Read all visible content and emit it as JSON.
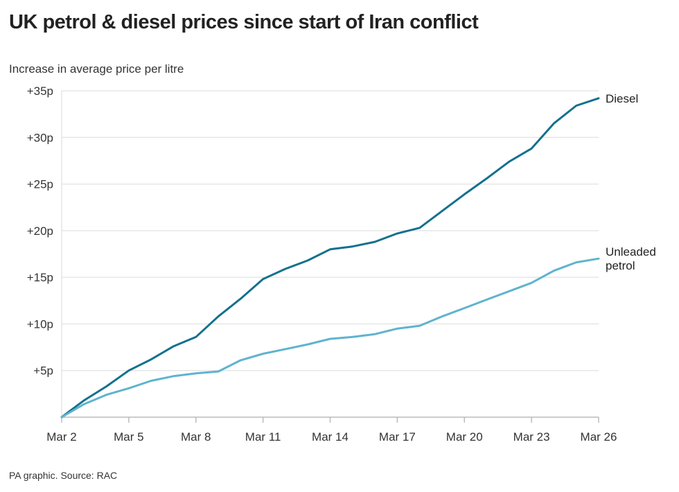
{
  "chart_data": {
    "type": "line",
    "title": "UK petrol & diesel prices since start of Iran conflict",
    "ylabel": "Increase in average price per litre",
    "source": "PA graphic. Source: RAC",
    "x_days": [
      "Mar 2",
      "Mar 3",
      "Mar 4",
      "Mar 5",
      "Mar 6",
      "Mar 7",
      "Mar 8",
      "Mar 9",
      "Mar 10",
      "Mar 11",
      "Mar 12",
      "Mar 13",
      "Mar 14",
      "Mar 15",
      "Mar 16",
      "Mar 17",
      "Mar 18",
      "Mar 19",
      "Mar 20",
      "Mar 21",
      "Mar 22",
      "Mar 23",
      "Mar 24",
      "Mar 25",
      "Mar 26"
    ],
    "x_tick_labels": [
      "Mar 2",
      "Mar 5",
      "Mar 8",
      "Mar 11",
      "Mar 14",
      "Mar 17",
      "Mar 20",
      "Mar 23",
      "Mar 26"
    ],
    "y_ticks": [
      5,
      10,
      15,
      20,
      25,
      30,
      35
    ],
    "y_tick_labels": [
      "+5p",
      "+10p",
      "+15p",
      "+20p",
      "+25p",
      "+30p",
      "+35p"
    ],
    "ylim": [
      0,
      35
    ],
    "grid": true,
    "series": [
      {
        "name": "Diesel",
        "label_lines": [
          "Diesel"
        ],
        "color": "#14708f",
        "values": [
          0,
          1.8,
          3.3,
          5.0,
          6.2,
          7.6,
          8.6,
          10.8,
          12.7,
          14.8,
          15.9,
          16.8,
          18.0,
          18.3,
          18.8,
          19.7,
          20.3,
          22.1,
          23.9,
          25.6,
          27.4,
          28.8,
          31.5,
          33.4,
          34.2
        ]
      },
      {
        "name": "Unleaded petrol",
        "label_lines": [
          "Unleaded",
          "petrol"
        ],
        "color": "#5fb3cf",
        "values": [
          0,
          1.4,
          2.4,
          3.1,
          3.9,
          4.4,
          4.7,
          4.9,
          6.1,
          6.8,
          7.3,
          7.8,
          8.4,
          8.6,
          8.9,
          9.5,
          9.8,
          10.8,
          11.7,
          12.6,
          13.5,
          14.4,
          15.7,
          16.6,
          17.0
        ]
      }
    ]
  }
}
